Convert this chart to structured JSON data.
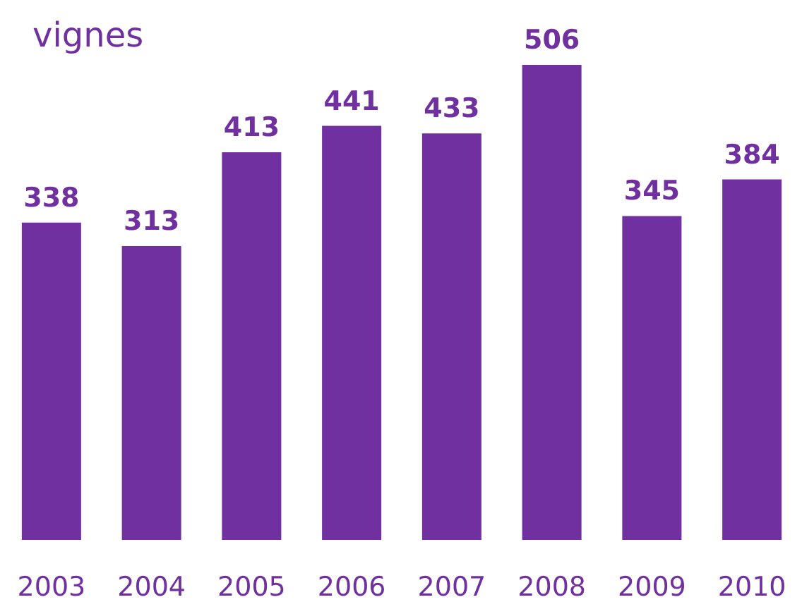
{
  "chart_data": {
    "type": "bar",
    "title": "vignes",
    "categories": [
      "2003",
      "2004",
      "2005",
      "2006",
      "2007",
      "2008",
      "2009",
      "2010"
    ],
    "values": [
      338,
      313,
      413,
      441,
      433,
      506,
      345,
      384
    ],
    "color": "#7030a0",
    "data_labels": true
  }
}
